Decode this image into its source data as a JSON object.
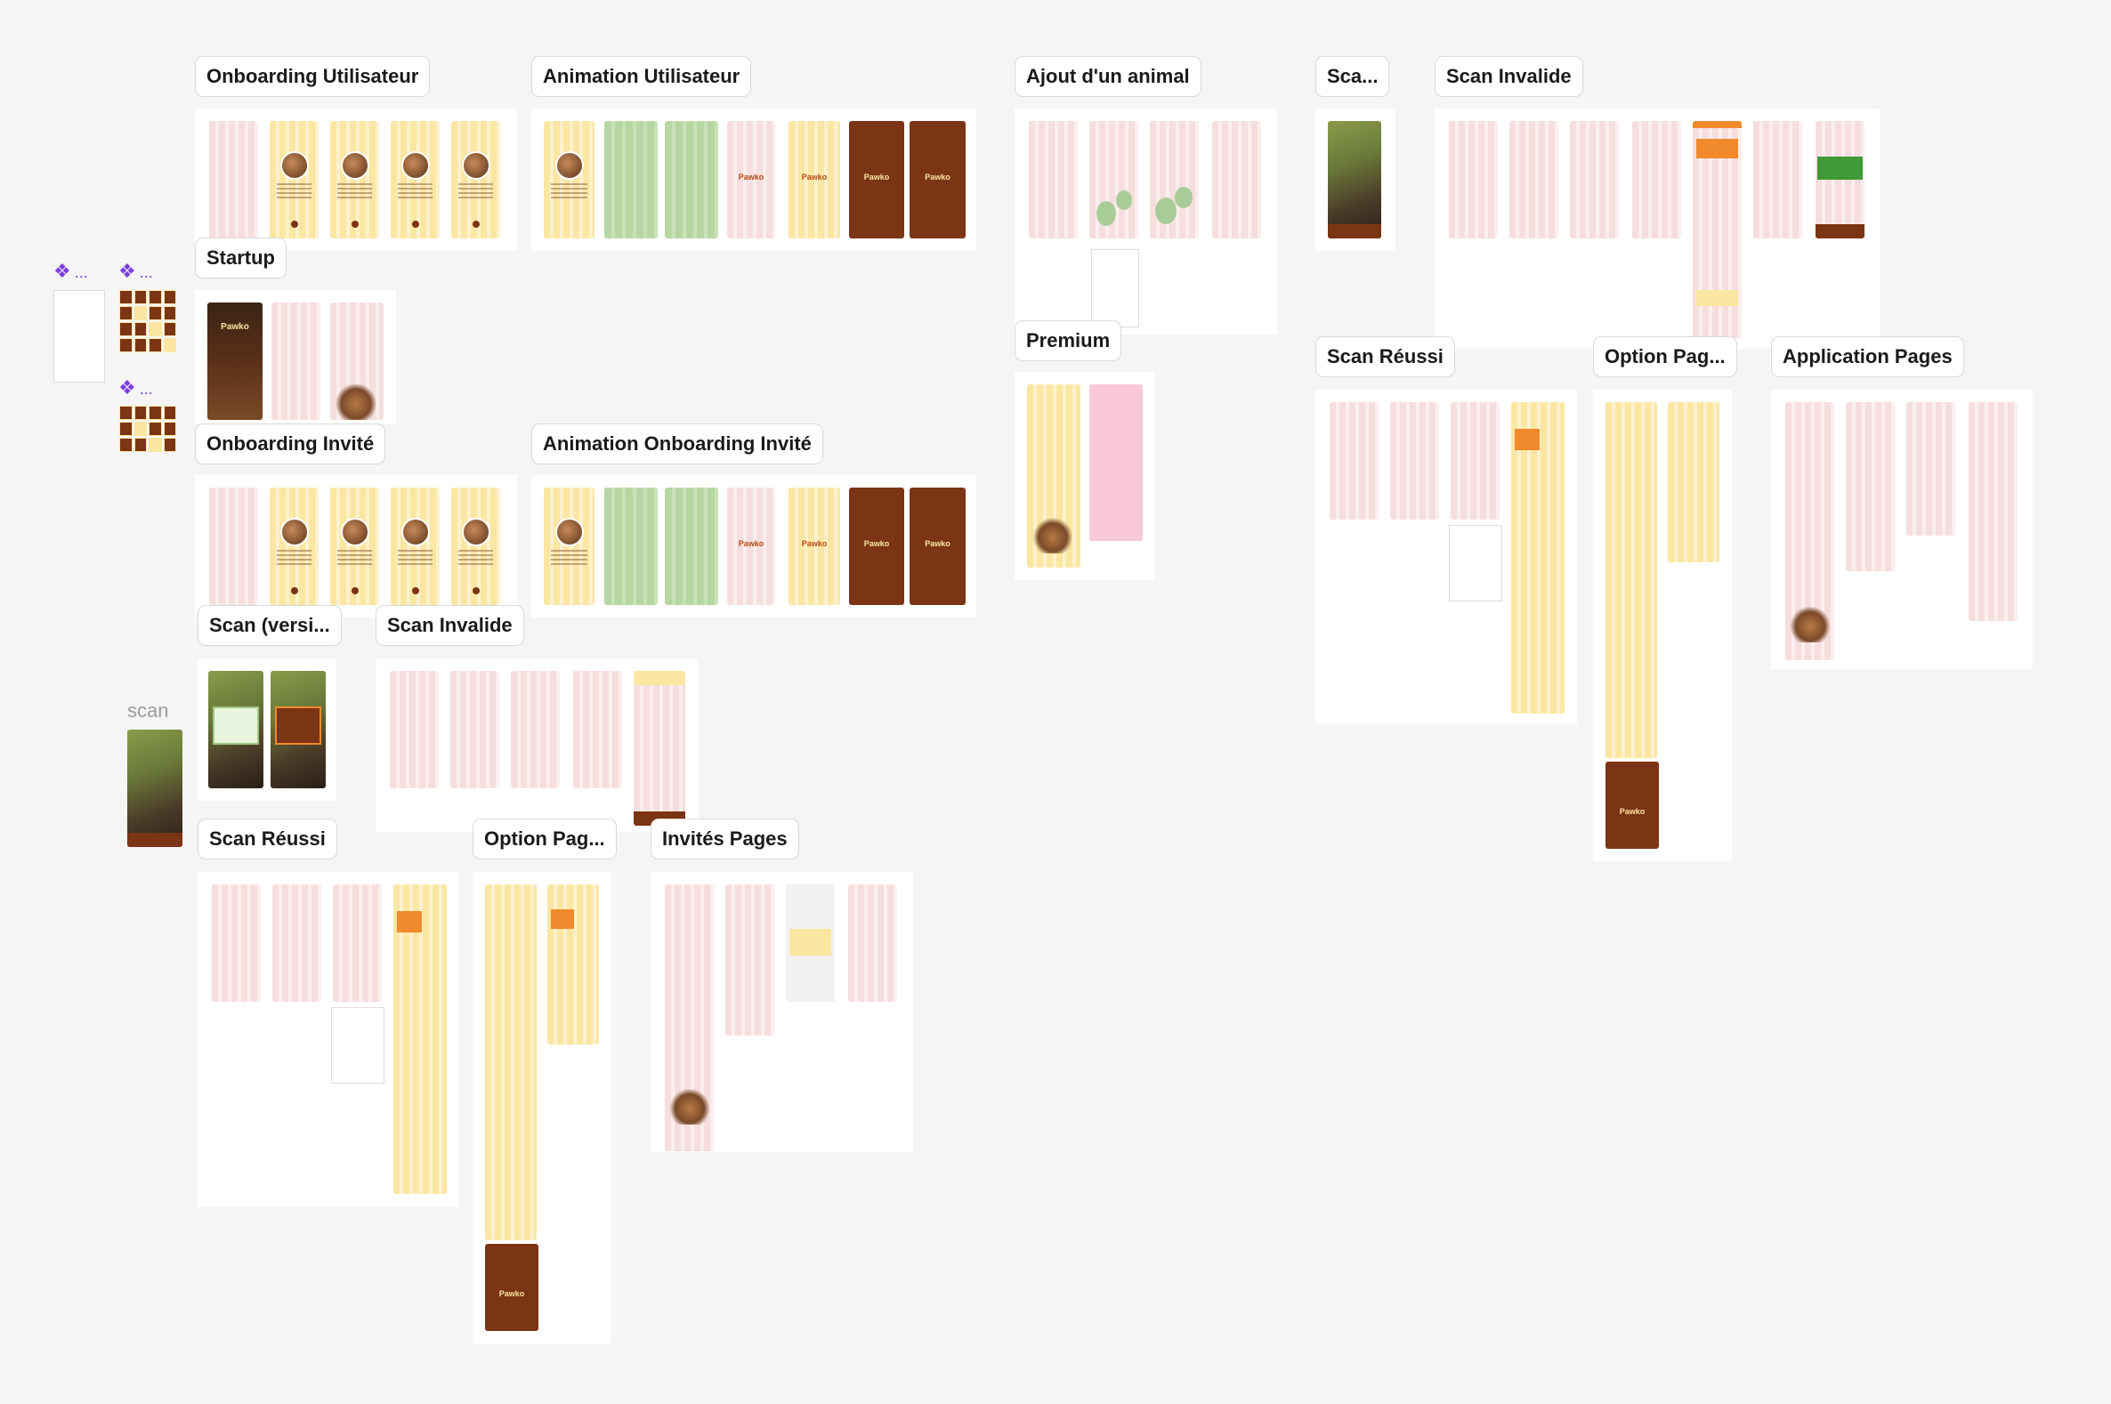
{
  "canvas": {
    "labels": {
      "onboarding_utilisateur": "Onboarding Utilisateur",
      "animation_utilisateur": "Animation Utilisateur",
      "ajout_animal": "Ajout d'un animal",
      "sca_truncated": "Sca...",
      "scan_invalide_top": "Scan Invalide",
      "startup": "Startup",
      "premium": "Premium",
      "scan_reussi_right": "Scan Réussi",
      "option_pag_right": "Option Pag...",
      "application_pages": "Application Pages",
      "onboarding_invite": "Onboarding Invité",
      "animation_onboarding_invite": "Animation Onboarding Invité",
      "scan_versi": "Scan (versi...",
      "scan_invalide_left": "Scan Invalide",
      "scan_reussi_left": "Scan Réussi",
      "option_pag_left": "Option Pag...",
      "invites_pages": "Invités Pages",
      "scan_small": "scan"
    },
    "component_icon_glyph": "❖",
    "component_dots": "...",
    "brand_name": "Pawko",
    "colors": {
      "background": "#f5f5f5",
      "brand_brown": "#7b3414",
      "brand_yellow": "#fbe6a2",
      "brand_pink": "#f6dede",
      "brand_green": "#b7d7a2",
      "accent_orange": "#f08a2c",
      "component_purple": "#7b3fe4"
    }
  }
}
